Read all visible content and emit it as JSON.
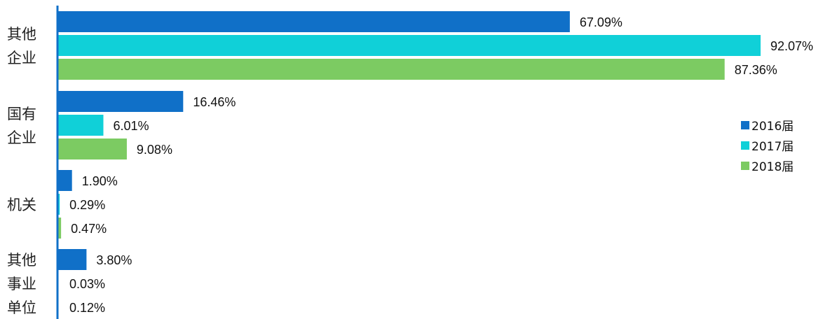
{
  "chart_data": {
    "type": "bar",
    "orientation": "horizontal",
    "categories": [
      [
        "其他",
        "企业"
      ],
      [
        "国有",
        "企业"
      ],
      [
        "机关"
      ],
      [
        "其他",
        "事业",
        "单位"
      ]
    ],
    "series": [
      {
        "name": "2016届",
        "color": "#1070C8",
        "values": [
          67.09,
          16.46,
          1.9,
          3.8
        ]
      },
      {
        "name": "2017届",
        "color": "#10D0D8",
        "values": [
          92.07,
          6.01,
          0.29,
          0.03
        ]
      },
      {
        "name": "2018届",
        "color": "#7CCB62",
        "values": [
          87.36,
          9.08,
          0.47,
          0.12
        ]
      }
    ],
    "value_labels": [
      [
        "67.09%",
        "92.07%",
        "87.36%"
      ],
      [
        "16.46%",
        "6.01%",
        "9.08%"
      ],
      [
        "1.90%",
        "0.29%",
        "0.47%"
      ],
      [
        "3.80%",
        "0.03%",
        "0.12%"
      ]
    ],
    "xlim": [
      0,
      92.07
    ],
    "axis_color": "#1070C8",
    "grid": false,
    "legend_position": "right"
  }
}
